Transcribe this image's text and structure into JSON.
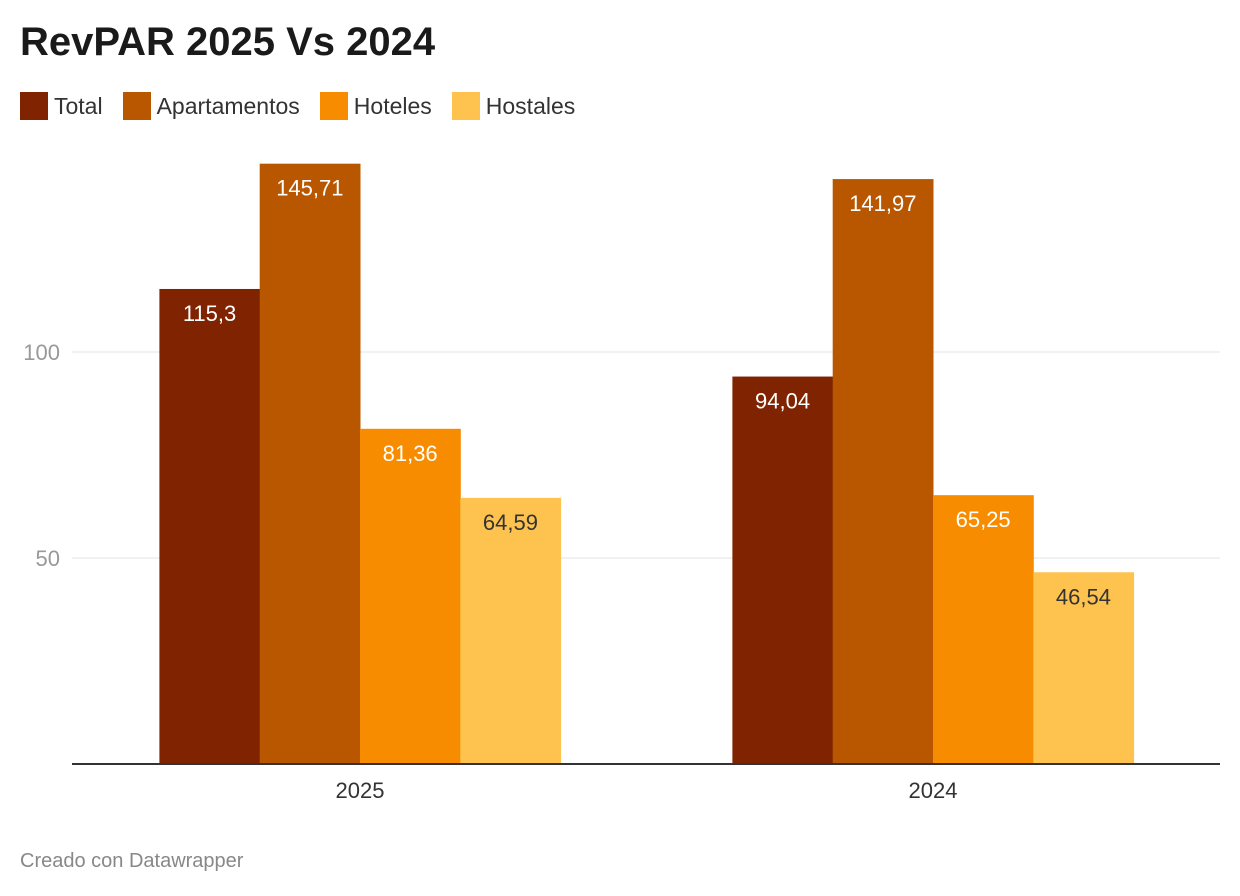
{
  "chart_data": {
    "type": "bar",
    "title": "RevPAR 2025 Vs 2024",
    "categories": [
      "2025",
      "2024"
    ],
    "series": [
      {
        "name": "Total",
        "color": "#7f2300",
        "values": [
          115.3,
          94.04
        ],
        "labels": [
          "115,3",
          "94,04"
        ]
      },
      {
        "name": "Apartamentos",
        "color": "#b85700",
        "values": [
          145.71,
          141.97
        ],
        "labels": [
          "145,71",
          "141,97"
        ]
      },
      {
        "name": "Hoteles",
        "color": "#f88c00",
        "values": [
          81.36,
          65.25
        ],
        "labels": [
          "81,36",
          "65,25"
        ]
      },
      {
        "name": "Hostales",
        "color": "#fec34f",
        "values": [
          64.59,
          46.54
        ],
        "labels": [
          "64,59",
          "46,54"
        ]
      }
    ],
    "yticks": [
      50,
      100
    ],
    "ylim": [
      0,
      150
    ],
    "grid": true,
    "legend": "top-left",
    "xlabel": "",
    "ylabel": ""
  },
  "footer": "Creado con Datawrapper"
}
